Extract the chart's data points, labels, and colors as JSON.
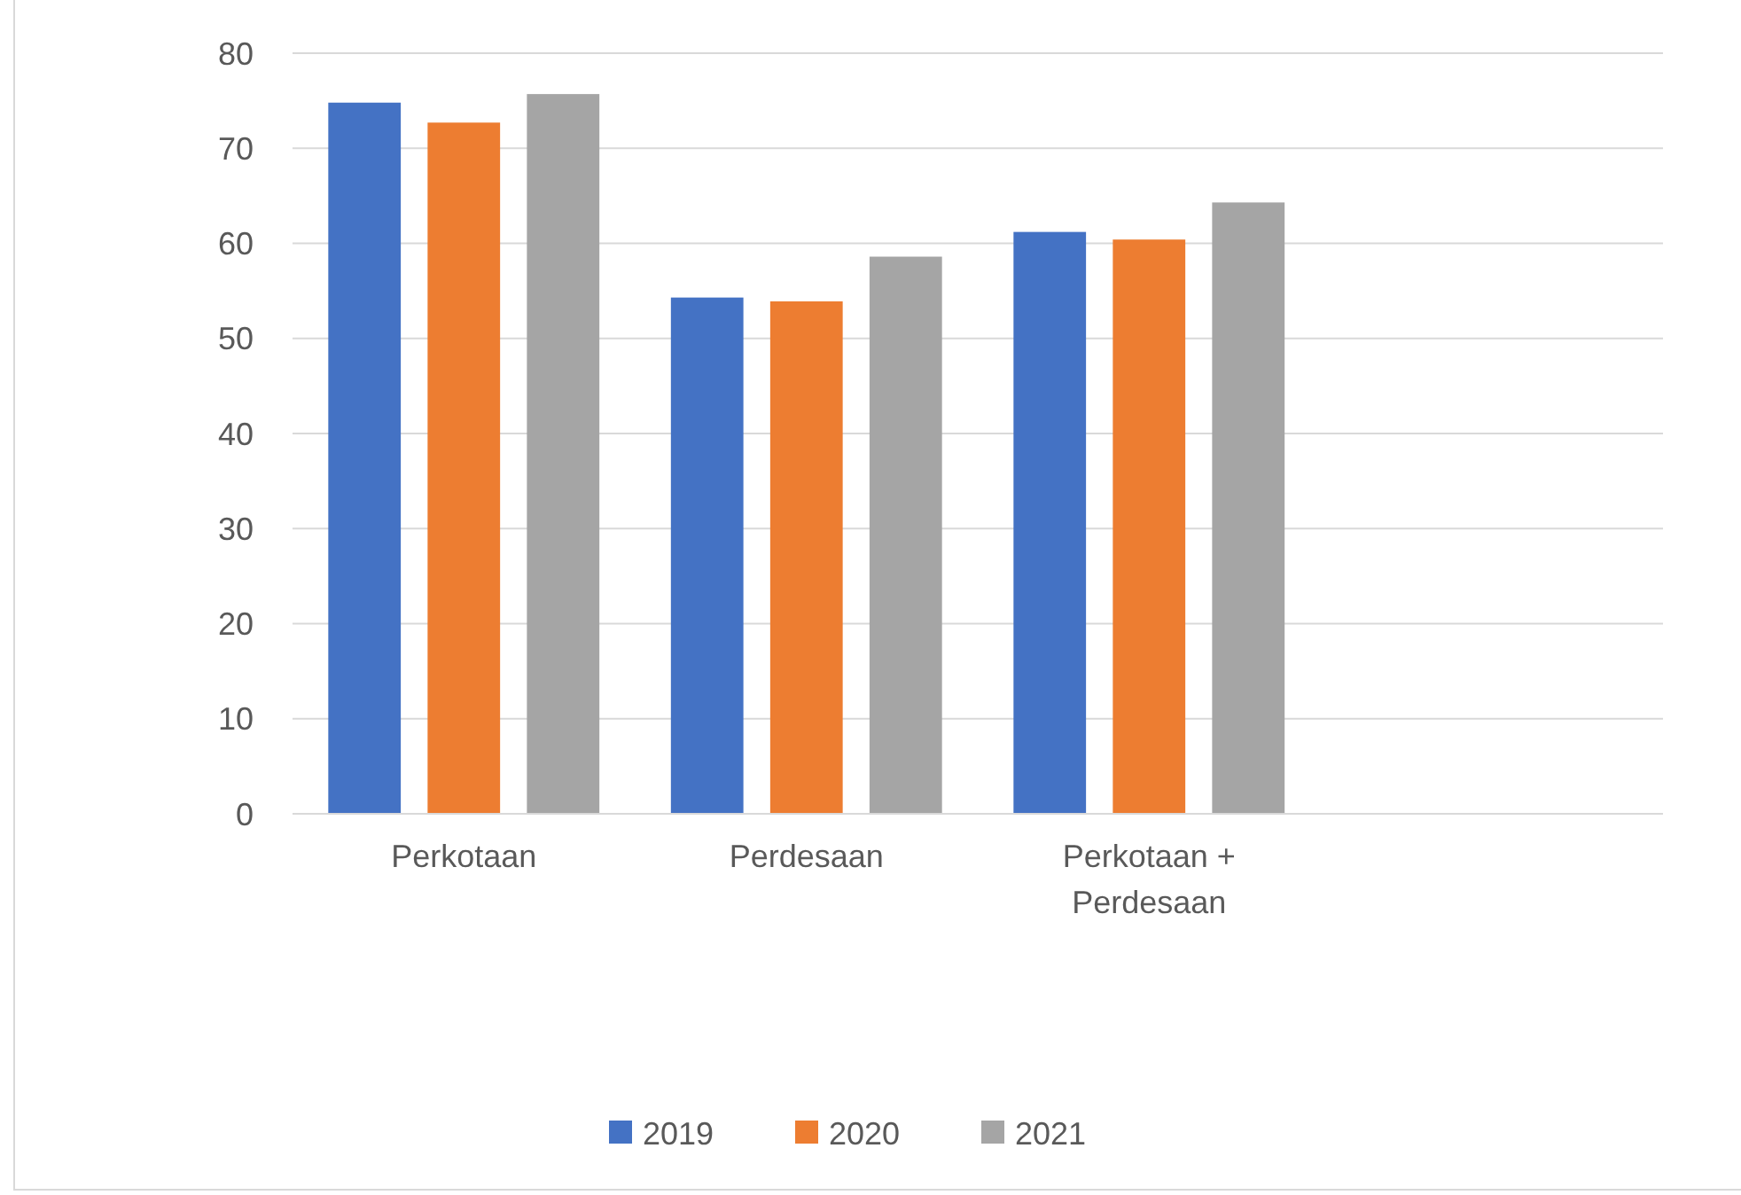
{
  "chart_data": {
    "type": "bar",
    "categories": [
      "Perkotaan",
      "Perdesaan",
      "Perkotaan + Perdesaan",
      null
    ],
    "series": [
      {
        "name": "2019",
        "color": "#4472c4",
        "values": [
          74.8,
          54.3,
          61.2,
          null
        ]
      },
      {
        "name": "2020",
        "color": "#ed7d31",
        "values": [
          72.7,
          53.9,
          60.4,
          null
        ]
      },
      {
        "name": "2021",
        "color": "#a5a5a5",
        "values": [
          75.7,
          58.6,
          64.3,
          null
        ]
      }
    ],
    "ylim": [
      0,
      80
    ],
    "yticks": [
      0,
      10,
      20,
      30,
      40,
      50,
      60,
      70,
      80
    ],
    "grid": "y",
    "legend": "bottom"
  }
}
